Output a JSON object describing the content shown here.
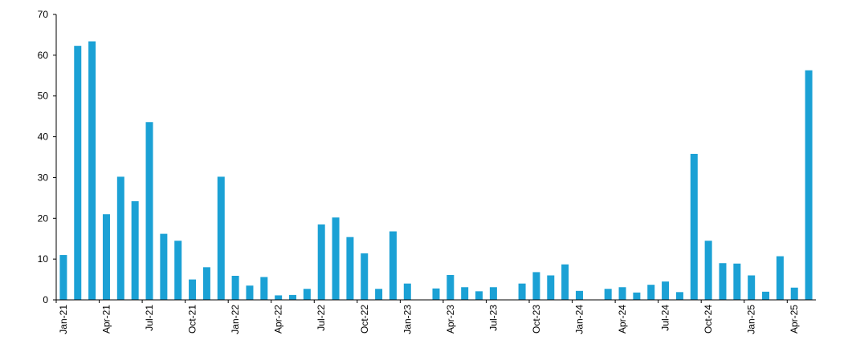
{
  "chart_data": {
    "type": "bar",
    "color": "#1ba1d5",
    "categories": [
      "Jan-21",
      null,
      null,
      "Apr-21",
      null,
      null,
      "Jul-21",
      null,
      null,
      "Oct-21",
      null,
      null,
      "Jan-22",
      null,
      null,
      "Apr-22",
      null,
      null,
      "Jul-22",
      null,
      null,
      "Oct-22",
      null,
      null,
      "Jan-23",
      null,
      null,
      "Apr-23",
      null,
      null,
      "Jul-23",
      null,
      null,
      "Oct-23",
      null,
      null,
      "Jan-24",
      null,
      null,
      "Apr-24",
      null,
      null,
      "Jul-24",
      null,
      null,
      "Oct-24",
      null,
      null,
      "Jan-25",
      null,
      null,
      "Apr-25",
      null
    ],
    "values": [
      11,
      62.3,
      63.4,
      21,
      30.2,
      24.2,
      43.6,
      16.2,
      14.5,
      5,
      8,
      30.2,
      5.9,
      3.5,
      5.6,
      1.1,
      1.2,
      2.7,
      18.5,
      20.2,
      15.4,
      11.4,
      2.7,
      16.8,
      4,
      0,
      2.8,
      6.1,
      3.1,
      2.1,
      3.1,
      0,
      4,
      6.8,
      6,
      8.7,
      2.2,
      0,
      2.7,
      3.1,
      1.8,
      3.7,
      4.5,
      1.9,
      35.8,
      14.5,
      9,
      8.9,
      6,
      2,
      10.7,
      3,
      56.3
    ],
    "ylim": [
      0,
      70
    ],
    "yticks": [
      0,
      10,
      20,
      30,
      40,
      50,
      60,
      70
    ]
  }
}
